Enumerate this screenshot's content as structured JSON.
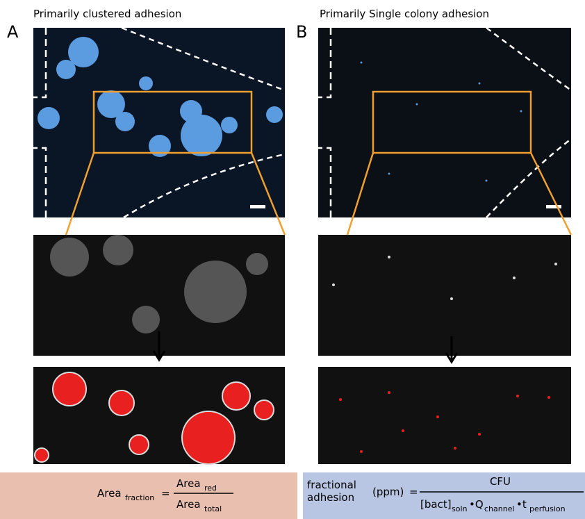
{
  "panels": [
    {
      "letter": "A",
      "title": "Primarily clustered adhesion",
      "formula": {
        "lhs": "Area",
        "lhs_sub": "fraction",
        "eq": "=",
        "num": "Area",
        "num_sub": "red",
        "den": "Area",
        "den_sub": "total"
      }
    },
    {
      "letter": "B",
      "title": "Primarily Single colony adhesion",
      "formula": {
        "lhs_line1": "fractional",
        "lhs_line2": "adhesion",
        "unit": "(ppm)",
        "eq": "=",
        "num": "CFU",
        "den_1": "[bact]",
        "den_1_sub": "soln",
        "den_2": "•Q",
        "den_2_sub": "channel",
        "den_3": "•t",
        "den_3_sub": "perfusion"
      }
    }
  ]
}
